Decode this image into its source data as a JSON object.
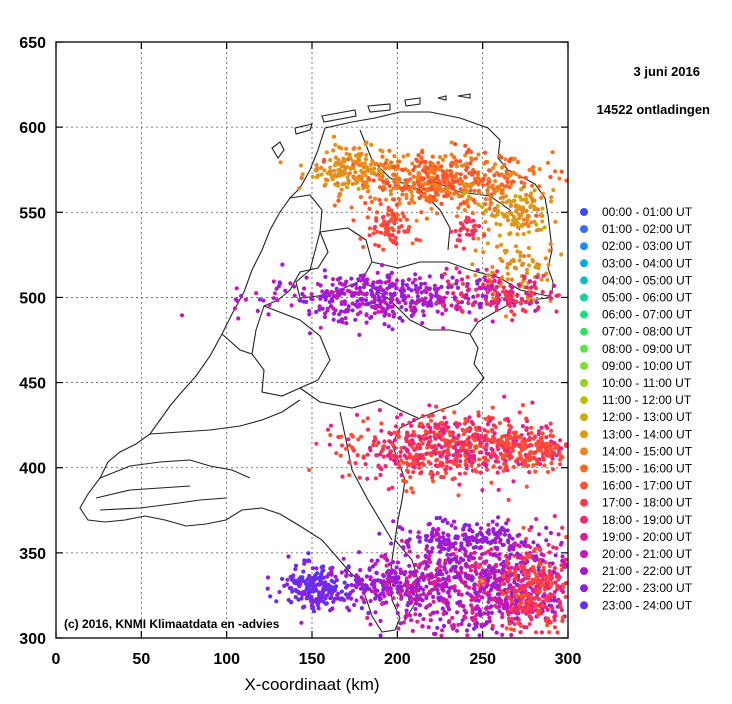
{
  "chart_data": {
    "type": "scatter",
    "title_date": "3 juni 2016",
    "title_count": "14522 ontladingen",
    "xlabel": "X-coordinaat (km)",
    "ylabel": "",
    "xlim": [
      0,
      300
    ],
    "ylim": [
      300,
      650
    ],
    "x_ticks": [
      "0",
      "50",
      "100",
      "150",
      "200",
      "250",
      "300"
    ],
    "y_ticks": [
      "300",
      "350",
      "400",
      "450",
      "500",
      "550",
      "600",
      "650"
    ],
    "grid": true,
    "legend_placement": "right",
    "copyright": "(c) 2016, KNMI Klimaatdata en -advies",
    "series": [
      {
        "name": "00:00 - 01:00 UT",
        "color": "#3b4cff"
      },
      {
        "name": "01:00 - 02:00 UT",
        "color": "#2f6cff"
      },
      {
        "name": "02:00 - 03:00 UT",
        "color": "#1f8bff"
      },
      {
        "name": "03:00 - 04:00 UT",
        "color": "#10a6df"
      },
      {
        "name": "04:00 - 05:00 UT",
        "color": "#10bcc0"
      },
      {
        "name": "05:00 - 06:00 UT",
        "color": "#18cfa0"
      },
      {
        "name": "06:00 - 07:00 UT",
        "color": "#20dc80"
      },
      {
        "name": "07:00 - 08:00 UT",
        "color": "#33e360"
      },
      {
        "name": "08:00 - 09:00 UT",
        "color": "#55e640"
      },
      {
        "name": "09:00 - 10:00 UT",
        "color": "#77e030"
      },
      {
        "name": "10:00 - 11:00 UT",
        "color": "#99d020"
      },
      {
        "name": "11:00 - 12:00 UT",
        "color": "#b4c010"
      },
      {
        "name": "12:00 - 13:00 UT",
        "color": "#c9ac10"
      },
      {
        "name": "13:00 - 14:00 UT",
        "color": "#dc9818"
      },
      {
        "name": "14:00 - 15:00 UT",
        "color": "#ee8420"
      },
      {
        "name": "15:00 - 16:00 UT",
        "color": "#f86c20"
      },
      {
        "name": "16:00 - 17:00 UT",
        "color": "#ff5030"
      },
      {
        "name": "17:00 - 18:00 UT",
        "color": "#ff3a4a"
      },
      {
        "name": "18:00 - 19:00 UT",
        "color": "#f02a6a"
      },
      {
        "name": "19:00 - 20:00 UT",
        "color": "#e0208e"
      },
      {
        "name": "20:00 - 21:00 UT",
        "color": "#c818b0"
      },
      {
        "name": "21:00 - 22:00 UT",
        "color": "#aa18cc"
      },
      {
        "name": "22:00 - 23:00 UT",
        "color": "#8a20e0"
      },
      {
        "name": "23:00 - 24:00 UT",
        "color": "#6030f0"
      }
    ]
  }
}
